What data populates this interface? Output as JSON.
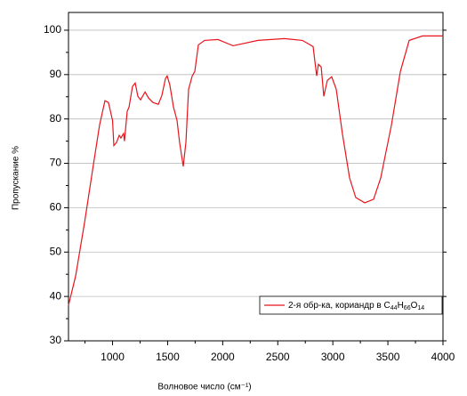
{
  "chart_data": {
    "type": "line",
    "y_label": "Пропускание %",
    "x_label": "Волновое число (см⁻¹)",
    "xlim": [
      600,
      4000
    ],
    "ylim": [
      30,
      104
    ],
    "xticks": [
      1000,
      1500,
      2000,
      2500,
      3000,
      3500,
      4000
    ],
    "yticks": [
      30,
      40,
      50,
      60,
      70,
      80,
      90,
      100
    ],
    "grid": true,
    "legend": "lower right",
    "series": [
      {
        "name": "2-я обр-ка, кориандр в C44H66O14",
        "color": "#e8141c",
        "x": [
          600,
          665,
          745,
          826,
          883,
          931,
          963,
          1000,
          1012,
          1036,
          1060,
          1076,
          1100,
          1108,
          1133,
          1150,
          1181,
          1206,
          1230,
          1254,
          1295,
          1327,
          1367,
          1416,
          1448,
          1480,
          1496,
          1520,
          1553,
          1585,
          1609,
          1642,
          1666,
          1690,
          1723,
          1747,
          1779,
          1836,
          1957,
          2094,
          2320,
          2562,
          2724,
          2821,
          2853,
          2869,
          2894,
          2918,
          2950,
          2990,
          3031,
          3087,
          3152,
          3208,
          3289,
          3370,
          3435,
          3532,
          3613,
          3693,
          3814,
          4000
        ],
        "values": [
          38,
          44.6,
          56.6,
          69.7,
          78.7,
          84.1,
          83.7,
          79.7,
          74,
          74.7,
          76.3,
          75.7,
          76.7,
          75,
          81.7,
          82.7,
          87.3,
          88.1,
          85.1,
          84.3,
          86.1,
          84.7,
          83.7,
          83.3,
          85.3,
          89.1,
          89.7,
          87.7,
          82.7,
          79.7,
          74.7,
          69.3,
          74.7,
          86.7,
          89.7,
          90.7,
          96.7,
          97.7,
          97.9,
          96.5,
          97.7,
          98.1,
          97.7,
          96.3,
          89.7,
          92.3,
          91.7,
          85.1,
          88.7,
          89.5,
          86.7,
          76.7,
          66.7,
          62.3,
          61.1,
          61.9,
          66.7,
          78.7,
          90.7,
          97.7,
          98.7,
          98.7
        ]
      }
    ]
  }
}
